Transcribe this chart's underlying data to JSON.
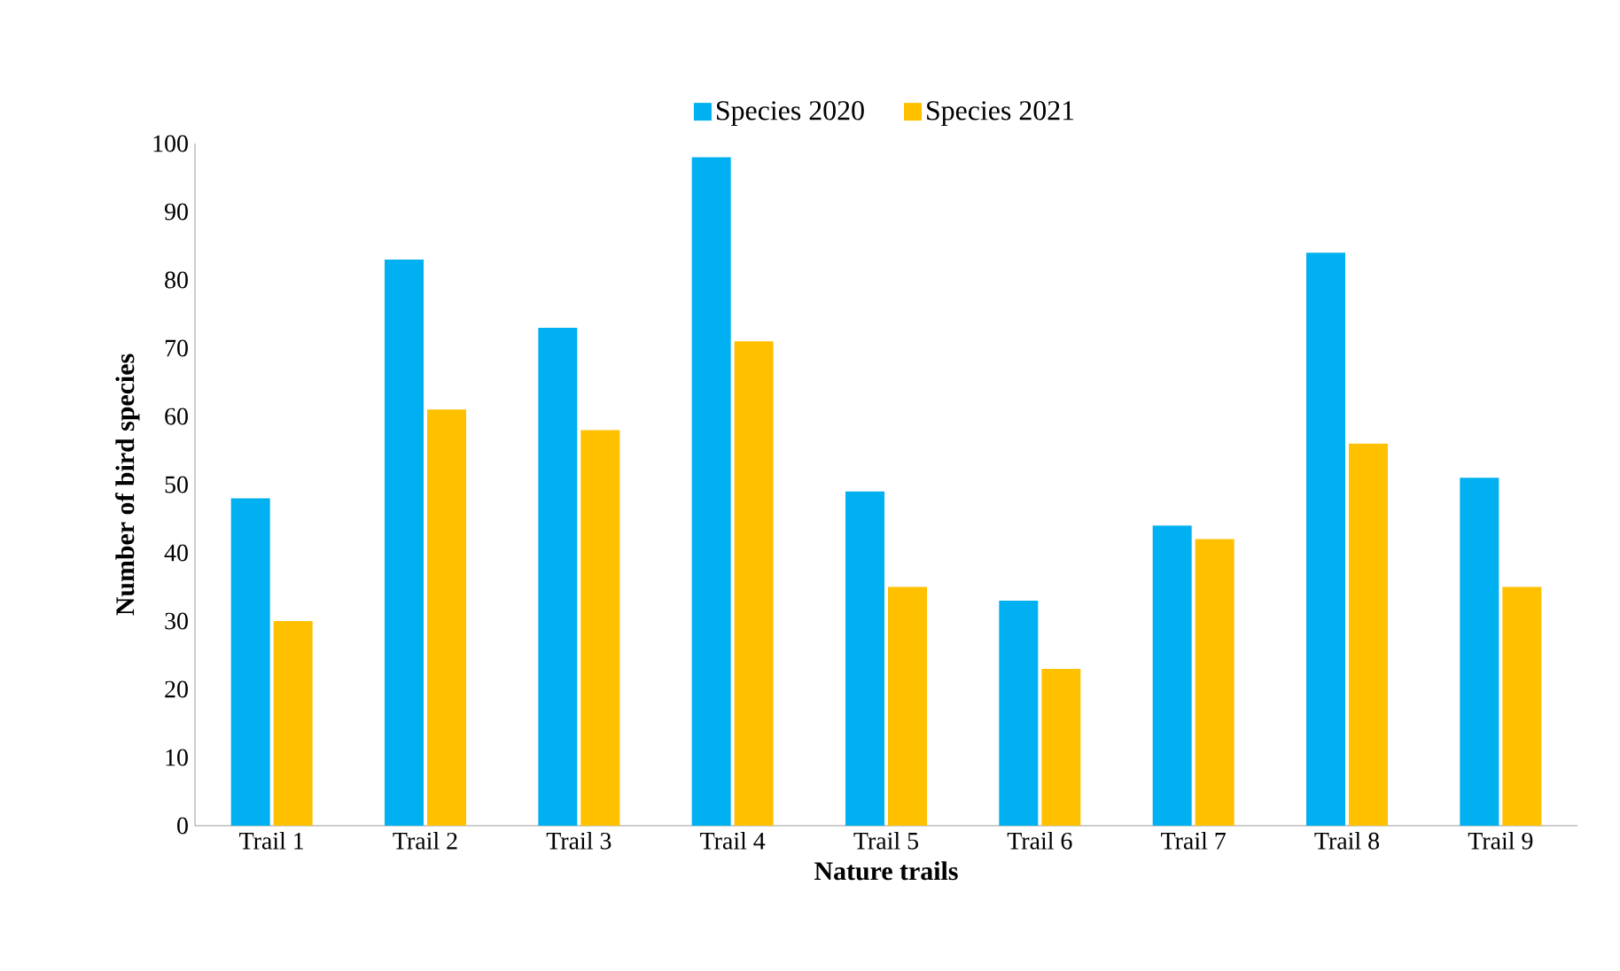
{
  "chart_data": {
    "type": "bar",
    "xlabel": "Nature trails",
    "ylabel": "Number of bird species",
    "categories": [
      "Trail 1",
      "Trail 2",
      "Trail 3",
      "Trail 4",
      "Trail 5",
      "Trail 6",
      "Trail 7",
      "Trail 8",
      "Trail 9"
    ],
    "series": [
      {
        "name": "Species 2020",
        "color": "#00b0f0",
        "values": [
          48,
          83,
          73,
          98,
          49,
          33,
          44,
          84,
          51
        ]
      },
      {
        "name": "Species 2021",
        "color": "#ffc000",
        "values": [
          30,
          61,
          58,
          71,
          35,
          23,
          42,
          56,
          35
        ]
      }
    ],
    "ylim": [
      0,
      100
    ],
    "yticks": [
      0,
      10,
      20,
      30,
      40,
      50,
      60,
      70,
      80,
      90,
      100
    ],
    "grid": false,
    "legend": "top"
  }
}
